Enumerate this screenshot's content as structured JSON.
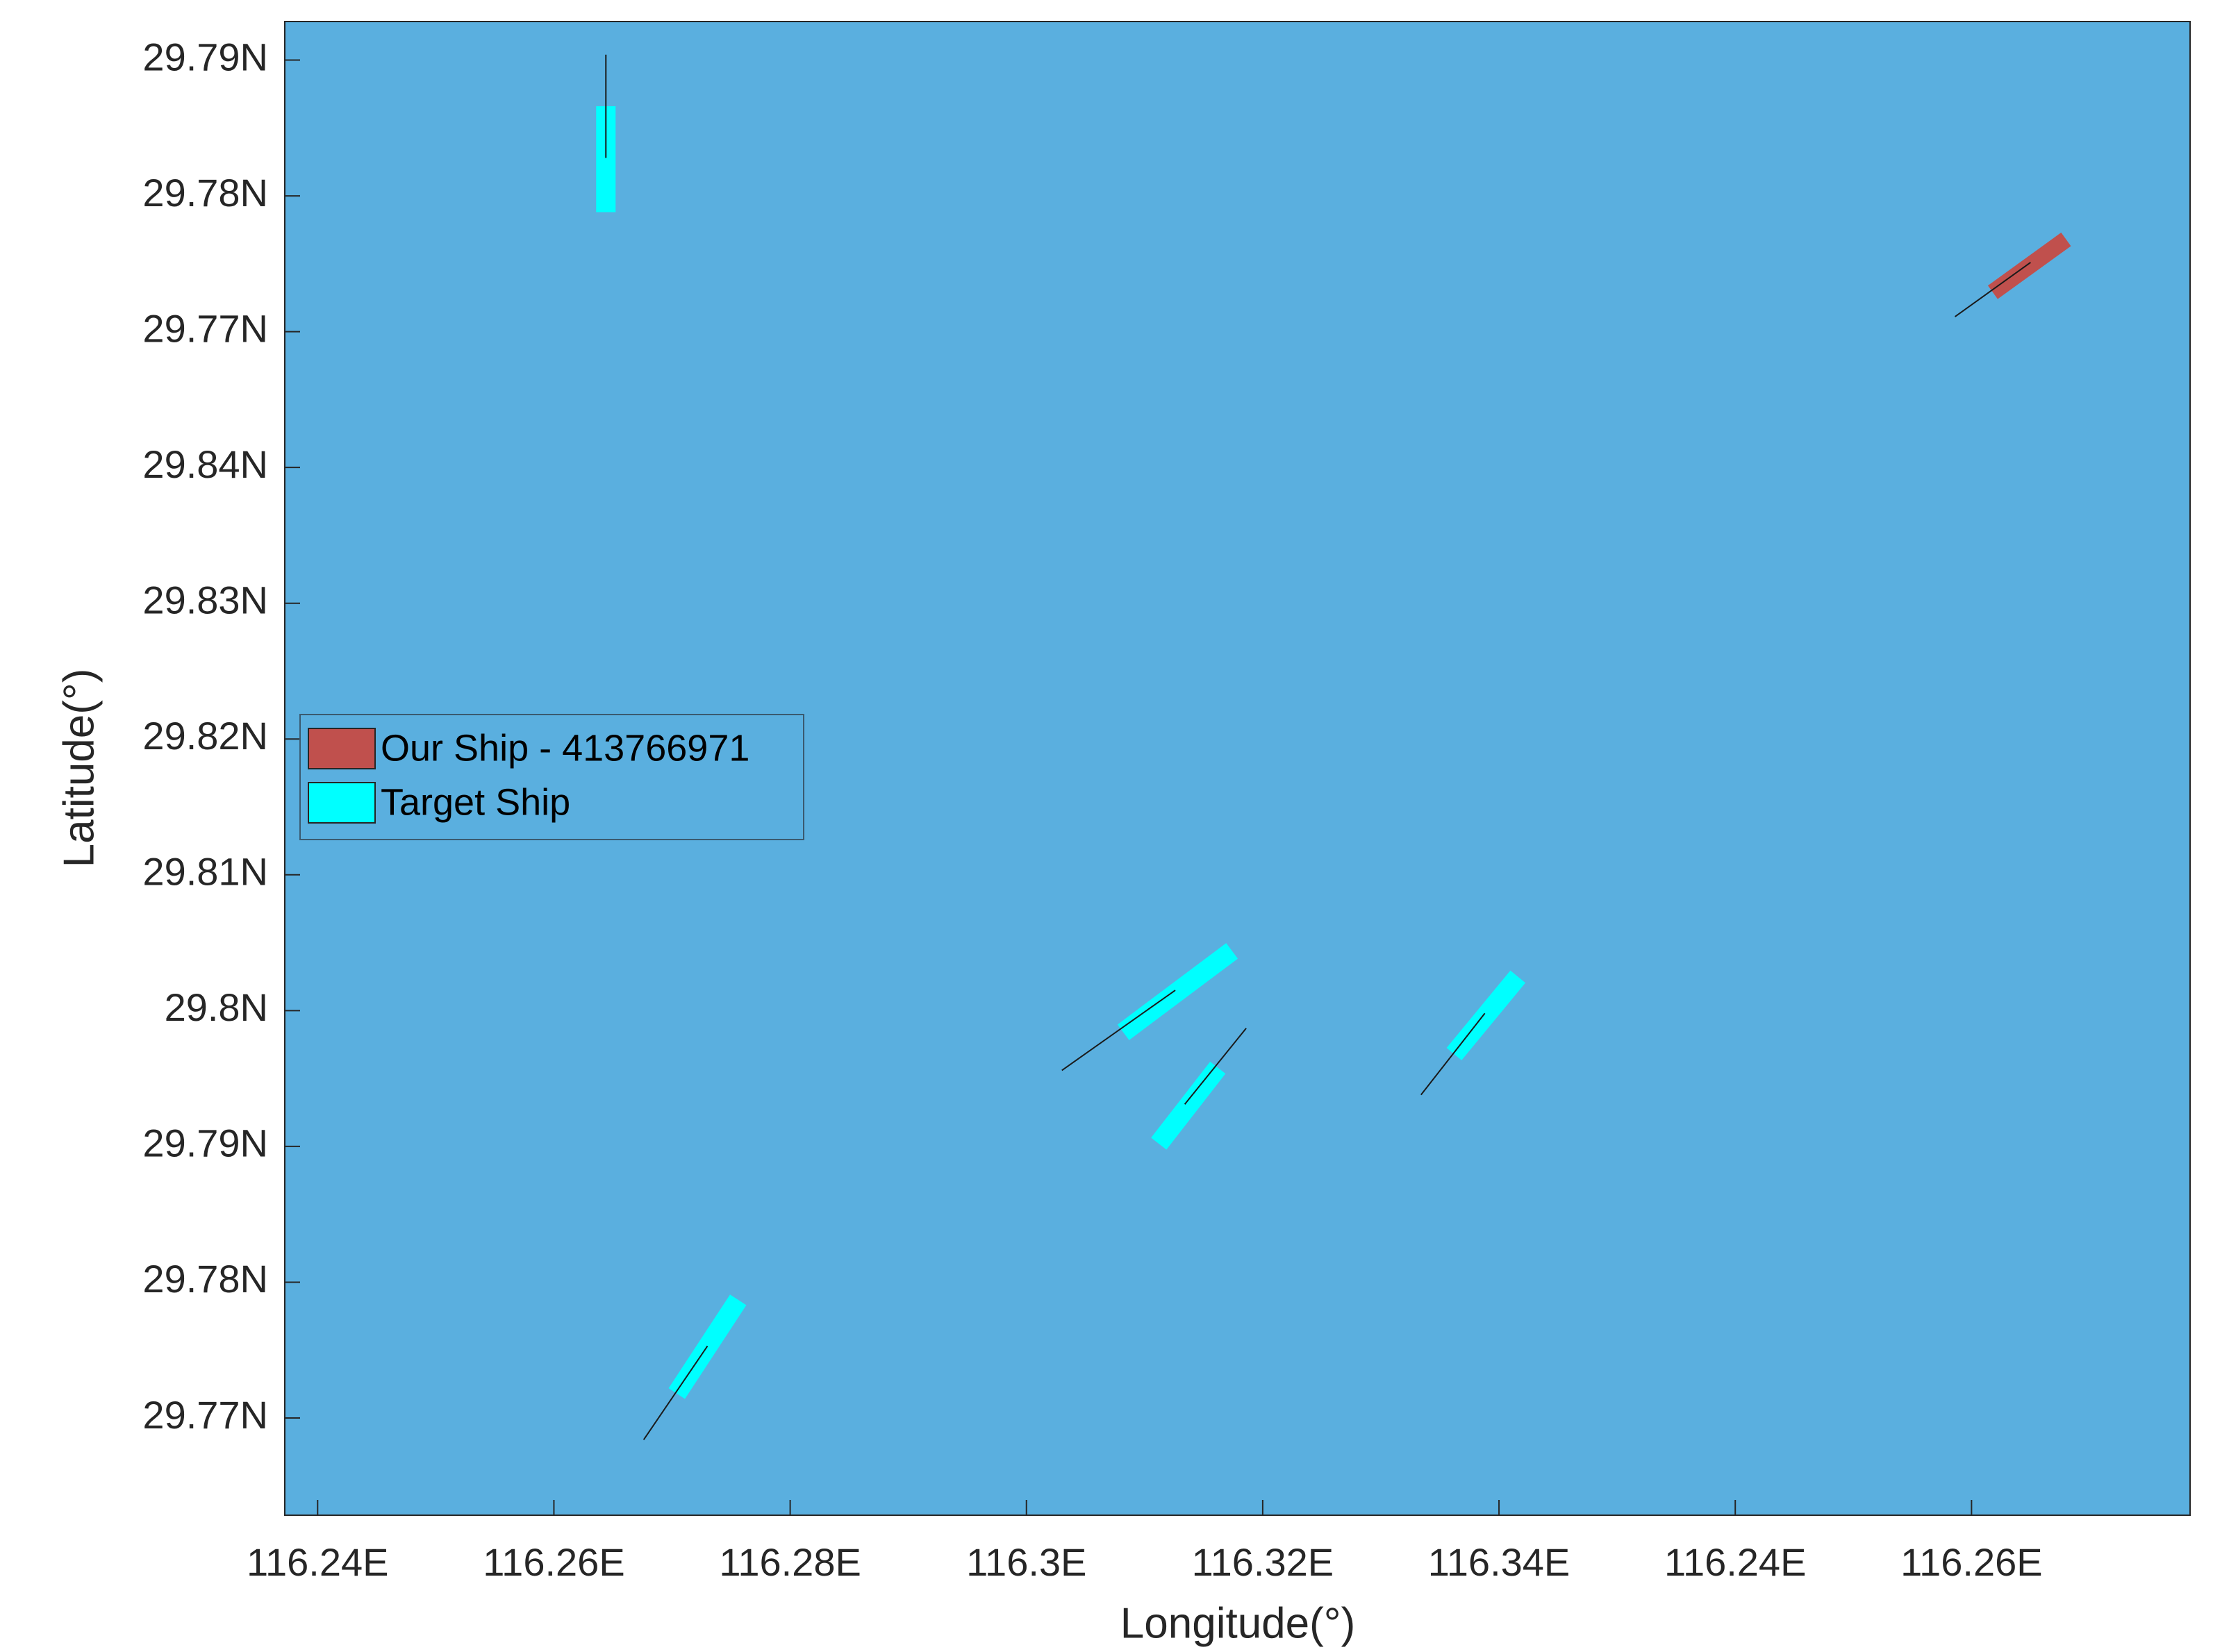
{
  "chart_data": {
    "type": "ship-plot",
    "xlabel": "Longitude(°)",
    "ylabel": "Latitude(°)",
    "xlim": [
      -0.139,
      7.925
    ],
    "ylim": [
      -0.716,
      10.284
    ],
    "xticks": [
      {
        "value": 0,
        "label": "116.24E"
      },
      {
        "value": 1,
        "label": "116.26E"
      },
      {
        "value": 2,
        "label": "116.28E"
      },
      {
        "value": 3,
        "label": "116.3E"
      },
      {
        "value": 4,
        "label": "116.32E"
      },
      {
        "value": 5,
        "label": "116.34E"
      },
      {
        "value": 6,
        "label": "116.24E"
      },
      {
        "value": 7,
        "label": "116.26E"
      }
    ],
    "yticks": [
      {
        "value": 0,
        "label": "29.77N"
      },
      {
        "value": 1,
        "label": "29.78N"
      },
      {
        "value": 2,
        "label": "29.79N"
      },
      {
        "value": 3,
        "label": "29.8N"
      },
      {
        "value": 4,
        "label": "29.81N"
      },
      {
        "value": 5,
        "label": "29.82N"
      },
      {
        "value": 6,
        "label": "29.83N"
      },
      {
        "value": 7,
        "label": "29.84N"
      },
      {
        "value": 8,
        "label": "29.77N"
      },
      {
        "value": 9,
        "label": "29.78N"
      },
      {
        "value": 10,
        "label": "29.79N"
      }
    ],
    "background": "#5aafdf",
    "legend": "left",
    "series": [
      {
        "name": "Our Ship - 413766971",
        "color": "#c0504d",
        "ships": [
          {
            "x": [
              7.09,
              7.4
            ],
            "y": [
              8.29,
              8.68
            ],
            "heading_x": [
              6.93,
              7.25
            ],
            "heading_y": [
              8.11,
              8.51
            ]
          }
        ]
      },
      {
        "name": "Target Ship",
        "color": "#00ffff",
        "ships": [
          {
            "x": [
              1.22,
              1.22
            ],
            "y": [
              8.88,
              9.66
            ],
            "heading_x": [
              1.22,
              1.22
            ],
            "heading_y": [
              9.28,
              10.04
            ]
          },
          {
            "x": [
              3.41,
              3.87
            ],
            "y": [
              2.84,
              3.44
            ],
            "heading_x": [
              3.15,
              3.63
            ],
            "heading_y": [
              2.56,
              3.15
            ]
          },
          {
            "x": [
              3.56,
              3.81
            ],
            "y": [
              2.02,
              2.58
            ],
            "heading_x": [
              3.67,
              3.93
            ],
            "heading_y": [
              2.31,
              2.87
            ]
          },
          {
            "x": [
              4.81,
              5.08
            ],
            "y": [
              2.68,
              3.25
            ],
            "heading_x": [
              4.67,
              4.94
            ],
            "heading_y": [
              2.38,
              2.98
            ]
          },
          {
            "x": [
              1.52,
              1.78
            ],
            "y": [
              0.18,
              0.87
            ],
            "heading_x": [
              1.38,
              1.65
            ],
            "heading_y": [
              -0.16,
              0.53
            ]
          }
        ]
      }
    ]
  }
}
